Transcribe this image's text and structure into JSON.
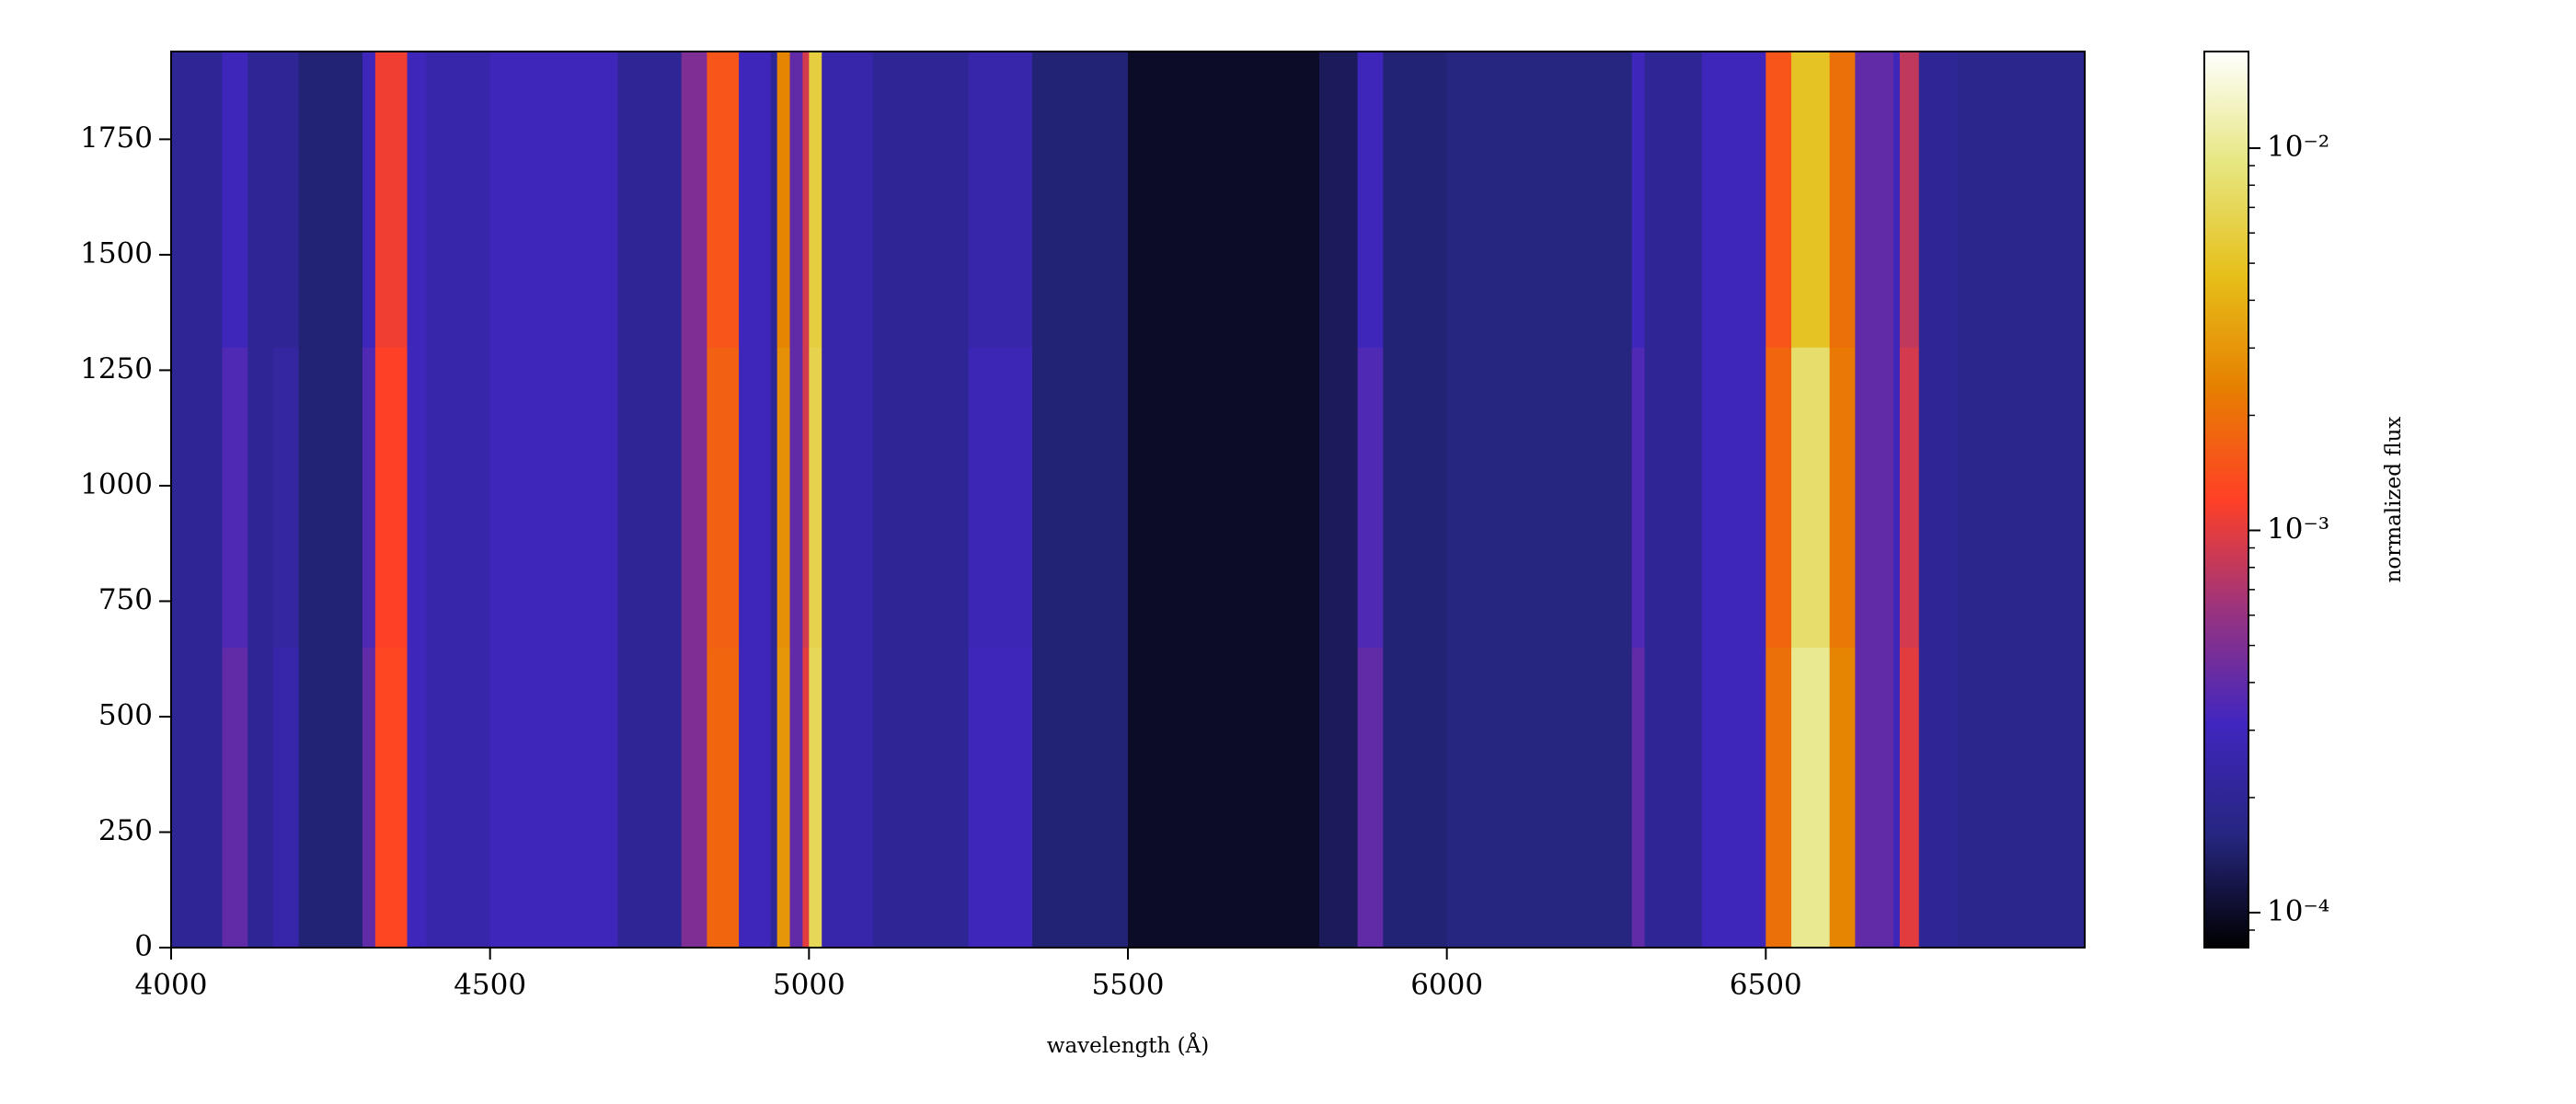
{
  "chart_data": {
    "type": "heatmap",
    "xlabel": "wavelength (Å)",
    "colorbar_label": "normalized flux",
    "xlim": [
      4000,
      7000
    ],
    "xticks": [
      4000,
      4500,
      5000,
      5500,
      6000,
      6500
    ],
    "ylim": [
      0,
      1940
    ],
    "yticks": [
      0,
      250,
      500,
      750,
      1000,
      1250,
      1500,
      1750
    ],
    "x_bins": [
      4000,
      4080,
      4120,
      4160,
      4200,
      4300,
      4320,
      4370,
      4400,
      4500,
      4700,
      4800,
      4840,
      4890,
      4940,
      4950,
      4970,
      4990,
      5000,
      5020,
      5100,
      5250,
      5350,
      5500,
      5800,
      5860,
      5900,
      6000,
      6290,
      6310,
      6400,
      6500,
      6540,
      6600,
      6640,
      6700,
      6710,
      6740,
      6800,
      7000
    ],
    "y_bins": [
      0,
      650,
      1300,
      1940
    ],
    "values": [
      [
        0.0002,
        0.0004,
        0.0002,
        0.00025,
        0.00015,
        0.0004,
        0.0013,
        0.0003,
        0.00025,
        0.0003,
        0.0002,
        0.0005,
        0.0018,
        0.0003,
        0.0002,
        0.003,
        0.0004,
        0.001,
        0.007,
        0.00025,
        0.0002,
        0.0003,
        0.00015,
        0.0001,
        0.00013,
        0.0004,
        0.00015,
        0.00016,
        0.0004,
        0.0002,
        0.0003,
        0.002,
        0.01,
        0.0025,
        0.0004,
        0.0003,
        0.001,
        0.0002,
        0.00018
      ],
      [
        0.0002,
        0.00035,
        0.0002,
        0.00022,
        0.00015,
        0.00035,
        0.0012,
        0.0003,
        0.00025,
        0.0003,
        0.0002,
        0.0005,
        0.0017,
        0.0003,
        0.0002,
        0.0028,
        0.0004,
        0.0009,
        0.0065,
        0.00025,
        0.0002,
        0.00028,
        0.00015,
        0.0001,
        0.00013,
        0.00035,
        0.00015,
        0.00016,
        0.00035,
        0.0002,
        0.0003,
        0.0018,
        0.008,
        0.0022,
        0.0004,
        0.0003,
        0.0009,
        0.0002,
        0.00018
      ],
      [
        0.0002,
        0.0003,
        0.0002,
        0.0002,
        0.00015,
        0.0003,
        0.0011,
        0.0003,
        0.00025,
        0.0003,
        0.0002,
        0.0005,
        0.0015,
        0.0003,
        0.0002,
        0.0025,
        0.0004,
        0.0009,
        0.006,
        0.00025,
        0.0002,
        0.00025,
        0.00015,
        0.0001,
        0.00013,
        0.0003,
        0.00015,
        0.00016,
        0.0003,
        0.0002,
        0.0003,
        0.0015,
        0.005,
        0.002,
        0.0004,
        0.0003,
        0.0008,
        0.0002,
        0.00018
      ]
    ],
    "log_color_scale": true,
    "clim": [
      8.1e-05,
      0.0179
    ],
    "cbar_ticks": [
      {
        "value": 0.0001,
        "label": "10⁻⁴"
      },
      {
        "value": 0.001,
        "label": "10⁻³"
      },
      {
        "value": 0.01,
        "label": "10⁻²"
      }
    ],
    "cbar_minor_ticks": [
      9e-05,
      0.0002,
      0.0003,
      0.0004,
      0.0005,
      0.0006,
      0.0007,
      0.0008,
      0.0009,
      0.002,
      0.003,
      0.004,
      0.005,
      0.006,
      0.007,
      0.008,
      0.009
    ],
    "colormap_colors": [
      "#000000",
      "#262680",
      "#4026bf",
      "#993380",
      "#ff4026",
      "#e68000",
      "#e6bf1a",
      "#e6e680",
      "#ffffff"
    ]
  }
}
